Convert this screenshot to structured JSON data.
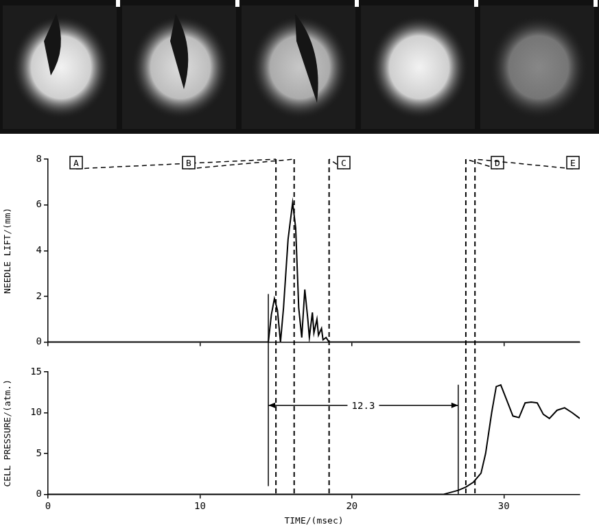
{
  "chart_data": [
    {
      "type": "line",
      "y_label": "NEEDLE LIFT/(mm)",
      "color": "#000000",
      "x": [
        0,
        14.5,
        14.7,
        14.9,
        15.1,
        15.3,
        15.5,
        15.8,
        16.1,
        16.3,
        16.5,
        16.7,
        16.9,
        17.1,
        17.2,
        17.4,
        17.5,
        17.7,
        17.8,
        18.0,
        18.1,
        18.3,
        18.5,
        35
      ],
      "values": [
        0,
        0,
        1.2,
        1.9,
        1.4,
        0,
        1.5,
        4.5,
        6.1,
        5.0,
        1.5,
        0.2,
        2.3,
        1.0,
        0.2,
        1.3,
        0.4,
        1.0,
        0.3,
        0.6,
        0.1,
        0.2,
        0,
        0
      ],
      "xlim": [
        0,
        35
      ],
      "ylim": [
        0,
        8
      ],
      "xticks": [
        0,
        10,
        20,
        30
      ],
      "yticks": [
        0,
        2,
        4,
        6,
        8
      ],
      "grid": false,
      "tick_labels": "y"
    },
    {
      "type": "line",
      "y_label": "CELL PRESSURE/(atm.)",
      "x_label": "TIME/(msec)",
      "color": "#000000",
      "x": [
        0,
        26.0,
        27.0,
        27.5,
        28.0,
        28.5,
        28.8,
        29.2,
        29.5,
        29.8,
        30.2,
        30.6,
        31.0,
        31.4,
        31.8,
        32.2,
        32.6,
        33.0,
        33.5,
        34.0,
        34.5,
        35.0
      ],
      "values": [
        0,
        0,
        0.5,
        0.9,
        1.5,
        2.6,
        5.0,
        10.0,
        13.2,
        13.4,
        11.5,
        9.6,
        9.4,
        11.2,
        11.3,
        11.2,
        9.8,
        9.3,
        10.3,
        10.6,
        10.0,
        9.3
      ],
      "xlim": [
        0,
        35
      ],
      "ylim": [
        0,
        15
      ],
      "xticks": [
        0,
        10,
        20,
        30
      ],
      "yticks": [
        0,
        5,
        10,
        15
      ],
      "grid": false,
      "annotation": {
        "text": "12.3",
        "x_start": 14.5,
        "x_end": 27.0,
        "y": 10.9
      }
    }
  ],
  "frames": {
    "labels": [
      "A",
      "B",
      "C",
      "D",
      "E"
    ],
    "times": [
      15.0,
      16.2,
      18.5,
      27.5,
      28.1
    ]
  }
}
